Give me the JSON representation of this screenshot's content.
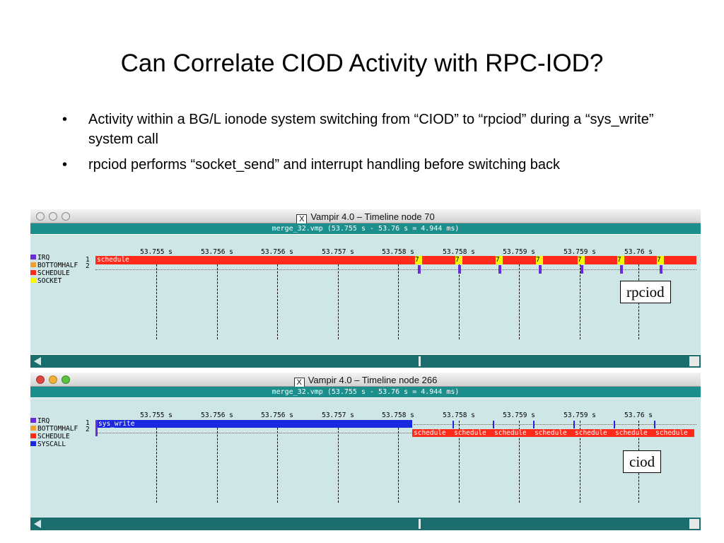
{
  "slide": {
    "title": "Can Correlate CIOD Activity with RPC-IOD?",
    "bullet_symbol": "•",
    "bullets": [
      "Activity within a BG/L ionode system switching from “CIOD” to “rpciod” during a “sys_write” system call",
      "rpciod performs “socket_send” and interrupt handling before switching back"
    ]
  },
  "windows": [
    {
      "title": "Vampir 4.0 – Timeline node 70",
      "x_icon": "X",
      "file_info": "merge_32.vmp (53.755 s - 53.76 s = 4.944 ms)",
      "ticks": [
        "53.755 s",
        "53.756 s",
        "53.756 s",
        "53.757 s",
        "53.758 s",
        "53.758 s",
        "53.759 s",
        "53.759 s",
        "53.76 s"
      ],
      "legend": [
        {
          "label": "IRQ",
          "color": "#6a2bd8"
        },
        {
          "label": "BOTTOMHALF",
          "color": "#f0a030"
        },
        {
          "label": "SCHEDULE",
          "color": "#ff2a1a"
        },
        {
          "label": "SOCKET",
          "color": "#f8f800"
        }
      ],
      "row_labels": [
        "1",
        "2"
      ],
      "bar_label": "schedule",
      "marker_label": "7",
      "callout": "rpciod",
      "traffic_lights": "inactive"
    },
    {
      "title": "Vampir 4.0 – Timeline node 266",
      "x_icon": "X",
      "file_info": "merge_32.vmp (53.755 s - 53.76 s = 4.944 ms)",
      "ticks": [
        "53.755 s",
        "53.756 s",
        "53.756 s",
        "53.757 s",
        "53.758 s",
        "53.758 s",
        "53.759 s",
        "53.759 s",
        "53.76 s"
      ],
      "legend": [
        {
          "label": "IRQ",
          "color": "#6a2bd8"
        },
        {
          "label": "BOTTOMHALF",
          "color": "#f0a030"
        },
        {
          "label": "SCHEDULE",
          "color": "#ff2a1a"
        },
        {
          "label": "SYSCALL",
          "color": "#1a28e0"
        }
      ],
      "row_labels": [
        "1",
        "2"
      ],
      "bar_label": "sys_write",
      "schedule_label": "schedule",
      "callout": "ciod",
      "traffic_lights": "active"
    }
  ],
  "colors": {
    "teal": "#1c8e8c",
    "plot_bg": "#cfe6e6",
    "schedule": "#ff2a1a",
    "syscall": "#1a28e0",
    "socket": "#f8f800",
    "irq": "#6a2bd8"
  }
}
